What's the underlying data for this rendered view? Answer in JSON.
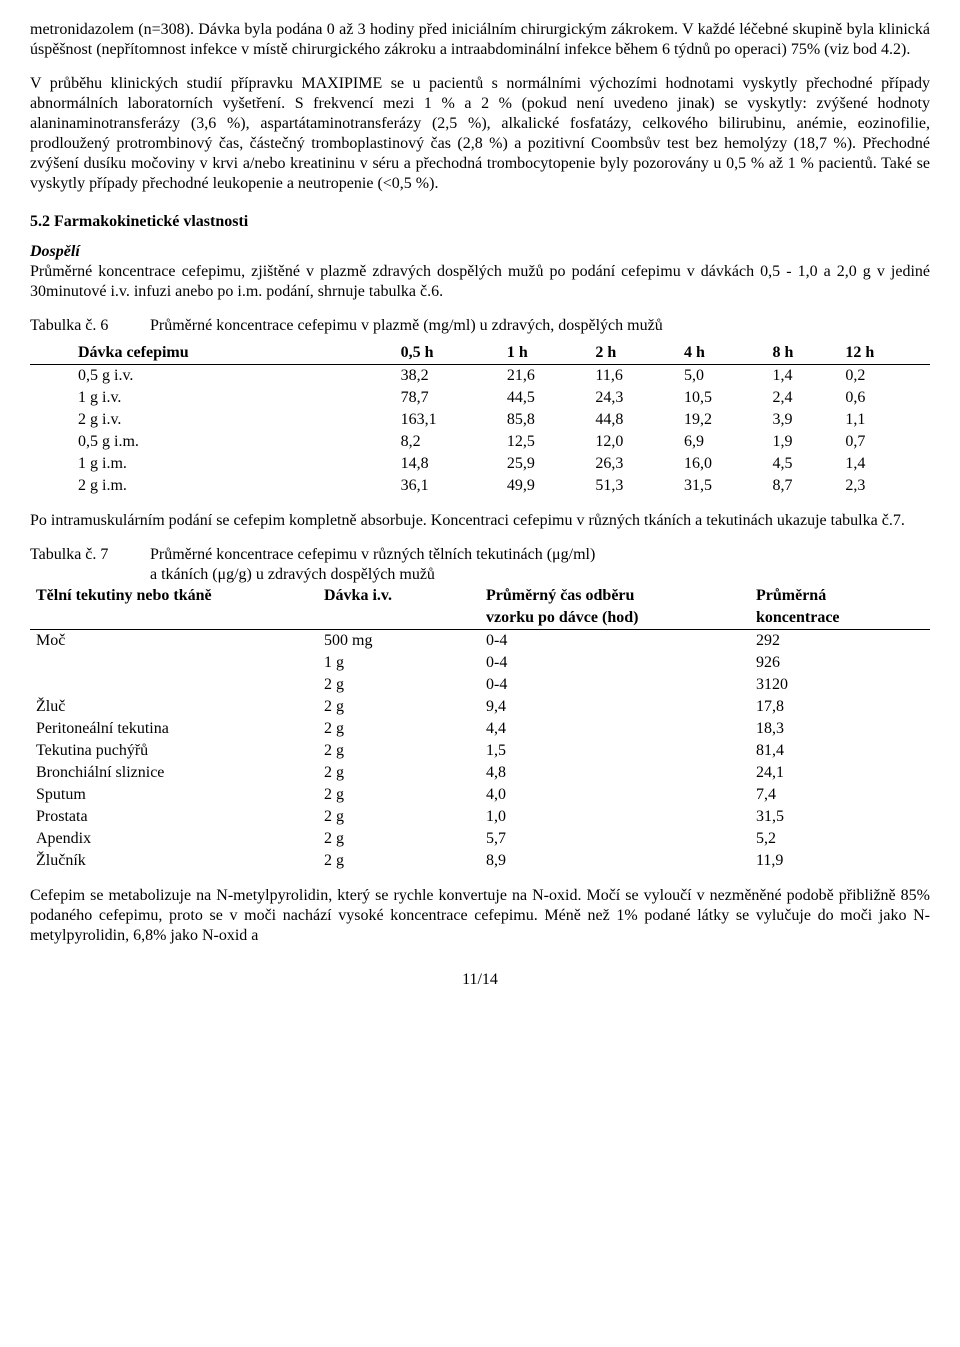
{
  "para1": "metronidazolem (n=308). Dávka byla podána 0 až 3 hodiny před iniciálním chirurgickým zákrokem. V každé léčebné skupině byla klinická úspěšnost (nepřítomnost infekce v místě chirurgického zákroku a intraabdominální infekce během 6 týdnů po operaci) 75% (viz bod 4.2).",
  "para2": "V průběhu klinických studií přípravku MAXIPIME se u pacientů s normálními výchozími hodnotami vyskytly přechodné případy abnormálních laboratorních vyšetření. S frekvencí mezi 1 % a 2 % (pokud není uvedeno jinak) se vyskytly: zvýšené hodnoty alaninaminotransferázy (3,6 %), aspartátaminotransferázy (2,5 %), alkalické fosfatázy, celkového bilirubinu, anémie, eozinofilie, prodloužený protrombinový čas, částečný tromboplastinový čas (2,8 %) a pozitivní Coombsův test bez hemolýzy (18,7 %). Přechodné zvýšení dusíku močoviny v krvi a/nebo kreatininu v séru a přechodná trombocytopenie byly pozorovány u 0,5 % až 1 % pacientů. Také se vyskytly případy přechodné leukopenie a neutropenie (<0,5 %).",
  "heading_5_2": "5.2 Farmakokinetické vlastnosti",
  "dospeli_label": "Dospělí",
  "para3": "Průměrné koncentrace cefepimu, zjištěné v plazmě zdravých dospělých mužů po podání cefepimu v dávkách 0,5 - 1,0 a 2,0 g v jediné 30minutové i.v. infuzi anebo po i.m. podání, shrnuje tabulka č.6.",
  "table6_label_num": "Tabulka č. 6",
  "table6_label_text": "Průměrné koncentrace cefepimu v plazmě (mg/ml) u zdravých, dospělých mužů",
  "table6": {
    "headers": [
      "Dávka cefepimu",
      "0,5 h",
      "1 h",
      "2 h",
      "4 h",
      "8 h",
      "12 h"
    ],
    "rows": [
      [
        "0,5 g i.v.",
        "38,2",
        "21,6",
        "11,6",
        "5,0",
        "1,4",
        "0,2"
      ],
      [
        "1 g i.v.",
        "78,7",
        "44,5",
        "24,3",
        "10,5",
        "2,4",
        "0,6"
      ],
      [
        "2 g i.v.",
        "163,1",
        "85,8",
        "44,8",
        "19,2",
        "3,9",
        "1,1"
      ],
      [
        "0,5 g i.m.",
        "8,2",
        "12,5",
        "12,0",
        "6,9",
        "1,9",
        "0,7"
      ],
      [
        "1 g i.m.",
        "14,8",
        "25,9",
        "26,3",
        "16,0",
        "4,5",
        "1,4"
      ],
      [
        "2 g i.m.",
        "36,1",
        "49,9",
        "51,3",
        "31,5",
        "8,7",
        "2,3"
      ]
    ]
  },
  "para4": "Po intramuskulárním podání se cefepim kompletně absorbuje. Koncentraci cefepimu v různých tkáních a tekutinách ukazuje tabulka č.7.",
  "table7_label_num": "Tabulka č. 7",
  "table7_label_line1": "Průměrné koncentrace cefepimu v různých tělních tekutinách (μg/ml)",
  "table7_label_line2": "a tkáních (μg/g) u zdravých dospělých mužů",
  "table7": {
    "headers": [
      "Tělní tekutiny nebo tkáně",
      "Dávka i.v.",
      "Průměrný čas odběru vzorku po dávce (hod)",
      "Průměrná koncentrace"
    ],
    "header_l1_c3": "Průměrný čas odběru",
    "header_l2_c3": "vzorku po dávce (hod)",
    "header_l1_c4": "Průměrná",
    "header_l2_c4": "koncentrace",
    "rows": [
      [
        "Moč",
        "500 mg",
        "0-4",
        "292"
      ],
      [
        "",
        "1 g",
        "0-4",
        "926"
      ],
      [
        "",
        "2 g",
        "0-4",
        "3120"
      ],
      [
        "Žluč",
        "2 g",
        "9,4",
        "17,8"
      ],
      [
        "Peritoneální tekutina",
        "2 g",
        "4,4",
        "18,3"
      ],
      [
        "Tekutina puchýřů",
        "2 g",
        "1,5",
        "81,4"
      ],
      [
        "Bronchiální sliznice",
        "2 g",
        "4,8",
        "24,1"
      ],
      [
        "Sputum",
        "2 g",
        "4,0",
        "7,4"
      ],
      [
        "Prostata",
        "2 g",
        "1,0",
        "31,5"
      ],
      [
        "Apendix",
        "2 g",
        "5,7",
        "5,2"
      ],
      [
        "Žlučník",
        "2 g",
        "8,9",
        "11,9"
      ]
    ]
  },
  "para5": "Cefepim se metabolizuje na N-metylpyrolidin, který se rychle konvertuje na N-oxid. Močí se vyloučí v nezměněné podobě přibližně 85% podaného cefepimu, proto se v moči nachází vysoké koncentrace cefepimu. Méně než 1% podané látky se vylučuje do moči jako N-metylpyrolidin, 6,8% jako N-oxid a",
  "page_number": "11/14"
}
